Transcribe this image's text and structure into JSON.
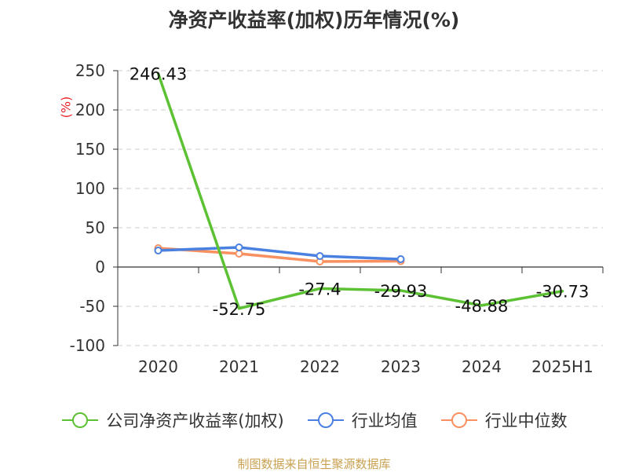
{
  "chart_data": {
    "type": "line",
    "title": "净资产收益率(加权)历年情况(%)",
    "ylabel": "(%)",
    "categories": [
      "2020",
      "2021",
      "2022",
      "2023",
      "2024",
      "2025H1"
    ],
    "ylim": [
      -100,
      250
    ],
    "yticks": [
      250,
      200,
      150,
      100,
      50,
      0,
      -50,
      -100
    ],
    "grid": true,
    "legend_position": "bottom",
    "series": [
      {
        "name": "公司净资产收益率(加权)",
        "color": "#5cc234",
        "values": [
          246.43,
          -52.75,
          -27.4,
          -29.93,
          -48.88,
          -30.73
        ],
        "labels": [
          "246.43",
          "-52.75",
          "-27.4",
          "-29.93",
          "-48.88",
          "-30.73"
        ]
      },
      {
        "name": "行业均值",
        "color": "#4a80e0",
        "values": [
          21,
          25,
          14,
          10,
          null,
          null
        ]
      },
      {
        "name": "行业中位数",
        "color": "#f89060",
        "values": [
          24,
          17,
          7,
          7.5,
          null,
          null
        ]
      }
    ]
  },
  "source": "制图数据来自恒生聚源数据库"
}
